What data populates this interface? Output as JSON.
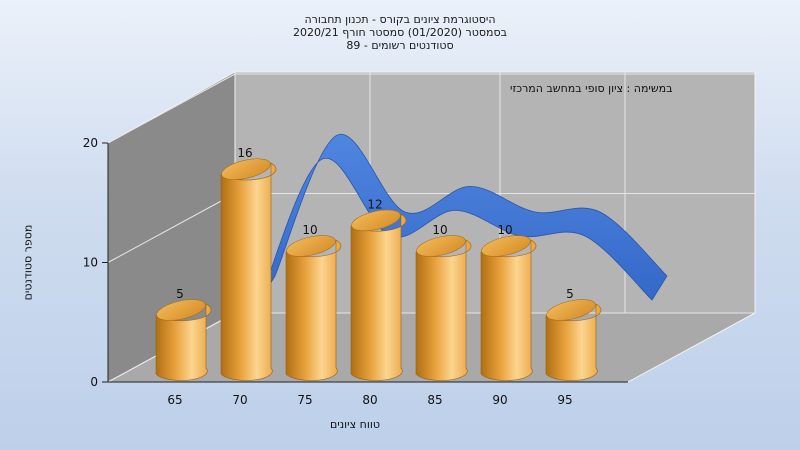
{
  "chart_data": {
    "type": "bar",
    "title": "היסטוגרמת ציונים בקורס - תכנון תחבורה",
    "subtitle": "בסמסטר (01/2020) סמסטר חורף 2020/21",
    "subtitle2": "סטודנטים רשומים - 89",
    "annotation": "במשימה : ציון סופי במחשב המרכזי",
    "xlabel": "טווח ציונים",
    "ylabel": "מספר סטודנטים",
    "x_ticks": [
      "65",
      "70",
      "75",
      "80",
      "85",
      "90",
      "95"
    ],
    "y_ticks": [
      "0",
      "10",
      "20"
    ],
    "ylim": [
      0,
      20
    ],
    "categories": [
      "65",
      "70",
      "75",
      "80",
      "85",
      "90",
      "95"
    ],
    "values": [
      5,
      16,
      10,
      12,
      10,
      10,
      5
    ],
    "data_labels": [
      "5",
      "16",
      "10",
      "12",
      "10",
      "10",
      "5"
    ],
    "trend_curve": [
      5,
      16,
      10,
      12,
      10,
      10,
      5
    ],
    "grid": true,
    "style": "3d-cylinder",
    "colors": {
      "bar": "#e8a13c",
      "bar_light": "#fcd590",
      "bar_dark": "#b06f14",
      "curve": "#3568c8",
      "curve_light": "#4f86e0",
      "wall_back": "#b4b4b4",
      "wall_side": "#8a8a8a",
      "floor": "#a9a9a9"
    }
  }
}
